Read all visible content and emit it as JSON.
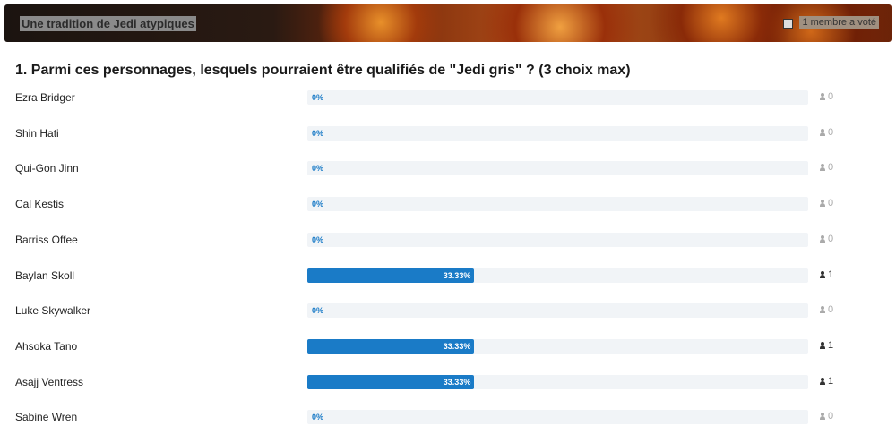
{
  "header": {
    "title": "Une tradition de Jedi atypiques",
    "votes": "1 membre a voté"
  },
  "poll": {
    "question": "1. Parmi ces personnages, lesquels pourraient être qualifiés de \"Jedi gris\" ? (3 choix max)",
    "options": [
      {
        "label": "Ezra Bridger",
        "percent": 0,
        "percent_label": "0%",
        "count": 0
      },
      {
        "label": "Shin Hati",
        "percent": 0,
        "percent_label": "0%",
        "count": 0
      },
      {
        "label": "Qui-Gon Jinn",
        "percent": 0,
        "percent_label": "0%",
        "count": 0
      },
      {
        "label": "Cal Kestis",
        "percent": 0,
        "percent_label": "0%",
        "count": 0
      },
      {
        "label": "Barriss Offee",
        "percent": 0,
        "percent_label": "0%",
        "count": 0
      },
      {
        "label": "Baylan Skoll",
        "percent": 33.33,
        "percent_label": "33.33%",
        "count": 1
      },
      {
        "label": "Luke Skywalker",
        "percent": 0,
        "percent_label": "0%",
        "count": 0
      },
      {
        "label": "Ahsoka Tano",
        "percent": 33.33,
        "percent_label": "33.33%",
        "count": 1
      },
      {
        "label": "Asajj Ventress",
        "percent": 33.33,
        "percent_label": "33.33%",
        "count": 1
      },
      {
        "label": "Sabine Wren",
        "percent": 0,
        "percent_label": "0%",
        "count": 0
      }
    ]
  }
}
